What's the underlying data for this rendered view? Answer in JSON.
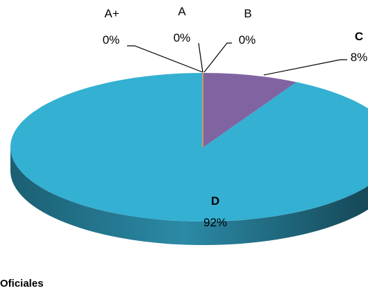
{
  "chart_data": {
    "type": "pie",
    "style": "3d",
    "categories": [
      "A+",
      "A",
      "B",
      "C",
      "D"
    ],
    "values": [
      0,
      0,
      0,
      8,
      92
    ],
    "value_labels": [
      "0%",
      "0%",
      "0%",
      "8%",
      "92%"
    ],
    "colors": {
      "A+": "#c0504d",
      "A": "#9bbb59",
      "B": "#f79646",
      "C": "#8064a2",
      "D": "#33b0d2",
      "D_side": "#1e6b82",
      "C_side": "#4a3a66",
      "leader": "#000000"
    },
    "bold_labels": [
      "C",
      "D"
    ]
  },
  "footer": {
    "text": "Oficiales"
  }
}
